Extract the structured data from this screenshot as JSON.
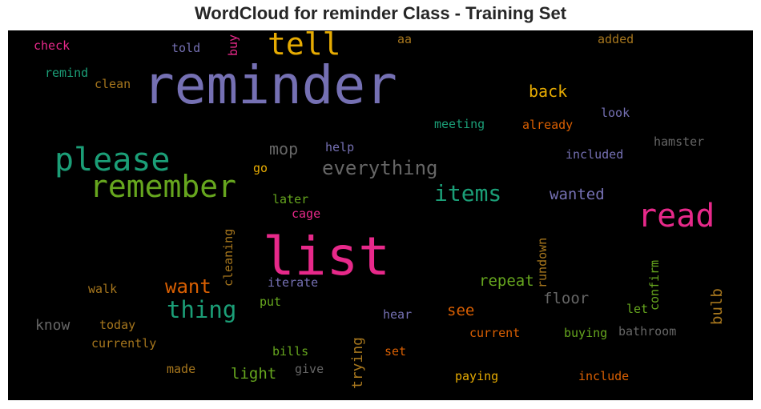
{
  "title": "WordCloud for reminder Class - Training Set",
  "words": [
    {
      "text": "reminder",
      "color": "#7570b3"
    },
    {
      "text": "list",
      "color": "#e7298a"
    },
    {
      "text": "please",
      "color": "#1b9e77"
    },
    {
      "text": "remember",
      "color": "#66a61e"
    },
    {
      "text": "tell",
      "color": "#e6ab02"
    },
    {
      "text": "read",
      "color": "#e7298a"
    },
    {
      "text": "everything",
      "color": "#666666"
    },
    {
      "text": "items",
      "color": "#1b9e77"
    },
    {
      "text": "thing",
      "color": "#1b9e77"
    },
    {
      "text": "want",
      "color": "#d95f02"
    },
    {
      "text": "mop",
      "color": "#666666"
    },
    {
      "text": "back",
      "color": "#e6ab02"
    },
    {
      "text": "wanted",
      "color": "#7570b3"
    },
    {
      "text": "repeat",
      "color": "#66a61e"
    },
    {
      "text": "floor",
      "color": "#666666"
    },
    {
      "text": "see",
      "color": "#d95f02"
    },
    {
      "text": "light",
      "color": "#66a61e"
    },
    {
      "text": "know",
      "color": "#666666"
    },
    {
      "text": "trying",
      "color": "#a6761d"
    },
    {
      "text": "bulb",
      "color": "#a6761d"
    },
    {
      "text": "check",
      "color": "#e7298a"
    },
    {
      "text": "told",
      "color": "#7570b3"
    },
    {
      "text": "buy",
      "color": "#e7298a"
    },
    {
      "text": "aa",
      "color": "#a6761d"
    },
    {
      "text": "added",
      "color": "#a6761d"
    },
    {
      "text": "remind",
      "color": "#1b9e77"
    },
    {
      "text": "clean",
      "color": "#a6761d"
    },
    {
      "text": "look",
      "color": "#7570b3"
    },
    {
      "text": "meeting",
      "color": "#1b9e77"
    },
    {
      "text": "already",
      "color": "#d95f02"
    },
    {
      "text": "hamster",
      "color": "#666666"
    },
    {
      "text": "help",
      "color": "#7570b3"
    },
    {
      "text": "included",
      "color": "#7570b3"
    },
    {
      "text": "go",
      "color": "#e6ab02"
    },
    {
      "text": "later",
      "color": "#66a61e"
    },
    {
      "text": "cage",
      "color": "#e7298a"
    },
    {
      "text": "cleaning",
      "color": "#a6761d"
    },
    {
      "text": "rundown",
      "color": "#a6761d"
    },
    {
      "text": "confirm",
      "color": "#66a61e"
    },
    {
      "text": "iterate",
      "color": "#7570b3"
    },
    {
      "text": "walk",
      "color": "#a6761d"
    },
    {
      "text": "put",
      "color": "#66a61e"
    },
    {
      "text": "let",
      "color": "#66a61e"
    },
    {
      "text": "hear",
      "color": "#7570b3"
    },
    {
      "text": "today",
      "color": "#a6761d"
    },
    {
      "text": "current",
      "color": "#d95f02"
    },
    {
      "text": "buying",
      "color": "#66a61e"
    },
    {
      "text": "bathroom",
      "color": "#666666"
    },
    {
      "text": "currently",
      "color": "#a6761d"
    },
    {
      "text": "bills",
      "color": "#66a61e"
    },
    {
      "text": "set",
      "color": "#d95f02"
    },
    {
      "text": "made",
      "color": "#a6761d"
    },
    {
      "text": "give",
      "color": "#666666"
    },
    {
      "text": "paying",
      "color": "#e6ab02"
    },
    {
      "text": "include",
      "color": "#d95f02"
    }
  ]
}
